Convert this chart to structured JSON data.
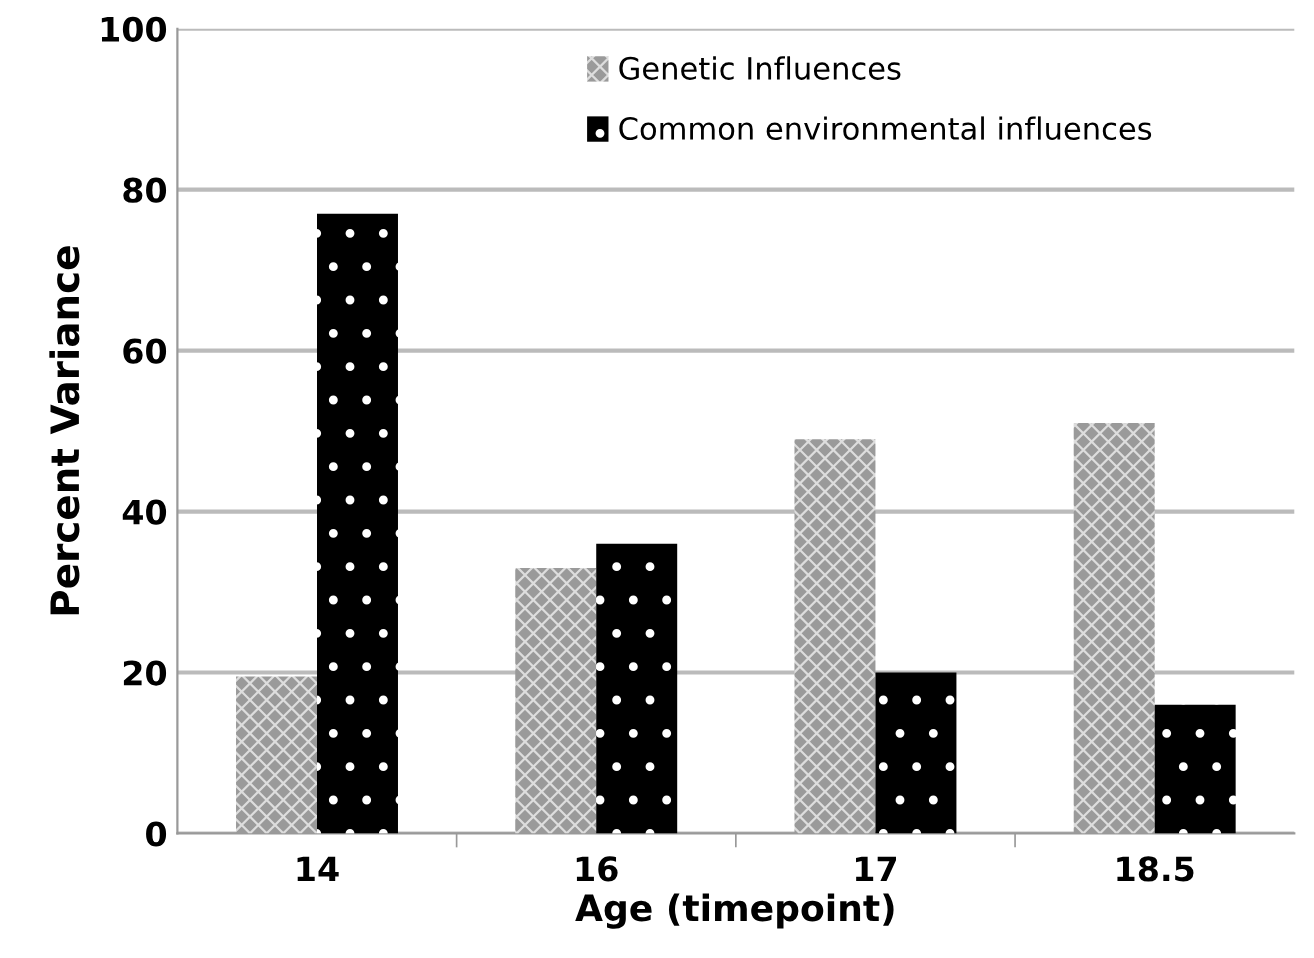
{
  "chart_data": {
    "type": "bar",
    "xlabel": "Age (timepoint)",
    "ylabel": "Percent Variance",
    "categories": [
      "14",
      "16",
      "17",
      "18.5"
    ],
    "series": [
      {
        "name": "Genetic Influences",
        "color": "#9a9a9a",
        "values": [
          19.5,
          33,
          49,
          51
        ]
      },
      {
        "name": "Common environmental influences",
        "color": "#000000",
        "values": [
          77,
          36,
          20,
          16
        ]
      }
    ],
    "ylim": [
      0,
      100
    ],
    "yticks": [
      0,
      20,
      40,
      60,
      80,
      100
    ],
    "grid": "y",
    "legend": "top"
  }
}
